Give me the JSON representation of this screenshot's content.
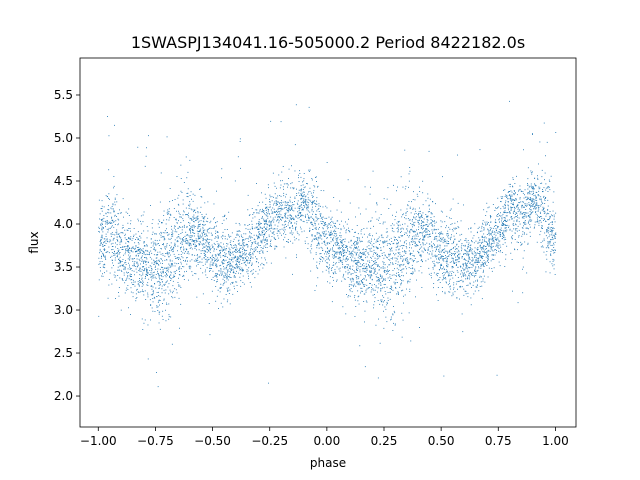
{
  "chart_data": {
    "type": "scatter",
    "title": "1SWASPJ134041.16-505000.2 Period 8422182.0s",
    "xlabel": "phase",
    "ylabel": "flux",
    "xlim": [
      -1.08,
      1.09
    ],
    "ylim": [
      1.64,
      5.93
    ],
    "x_ticks": [
      -1.0,
      -0.75,
      -0.5,
      -0.25,
      0.0,
      0.25,
      0.5,
      0.75,
      1.0
    ],
    "x_tick_labels": [
      "−1.00",
      "−0.75",
      "−0.50",
      "−0.25",
      "0.00",
      "0.25",
      "0.50",
      "0.75",
      "1.00"
    ],
    "y_ticks": [
      2.0,
      2.5,
      3.0,
      3.5,
      4.0,
      4.5,
      5.0,
      5.5
    ],
    "y_tick_labels": [
      "2.0",
      "2.5",
      "3.0",
      "3.5",
      "4.0",
      "4.5",
      "5.0",
      "5.5"
    ],
    "grid": false,
    "legend": "none",
    "marker_color": "#1f77b4",
    "series": [
      {
        "phase": [
          -1.0,
          -0.95,
          -0.9,
          -0.85,
          -0.8,
          -0.75,
          -0.7,
          -0.65,
          -0.6,
          -0.55,
          -0.5,
          -0.45,
          -0.4,
          -0.35,
          -0.3,
          -0.25,
          -0.2,
          -0.15,
          -0.1,
          -0.05,
          0.0,
          0.05,
          0.1,
          0.15,
          0.2,
          0.25,
          0.3,
          0.35,
          0.4,
          0.45,
          0.5,
          0.55,
          0.6,
          0.65,
          0.7,
          0.75,
          0.8,
          0.85,
          0.9,
          0.95,
          1.0
        ],
        "flux_mean": [
          3.75,
          3.95,
          3.7,
          3.6,
          3.55,
          3.45,
          3.6,
          3.75,
          3.95,
          3.85,
          3.65,
          3.55,
          3.6,
          3.7,
          3.85,
          4.05,
          4.15,
          4.1,
          4.3,
          4.0,
          3.75,
          3.75,
          3.6,
          3.55,
          3.55,
          3.45,
          3.55,
          3.75,
          3.9,
          3.9,
          3.65,
          3.6,
          3.55,
          3.6,
          3.75,
          3.95,
          4.15,
          4.1,
          4.3,
          4.15,
          3.8
        ],
        "flux_spread": [
          0.25,
          0.4,
          0.35,
          0.3,
          0.35,
          0.4,
          0.45,
          0.4,
          0.3,
          0.3,
          0.3,
          0.3,
          0.25,
          0.25,
          0.25,
          0.25,
          0.25,
          0.3,
          0.2,
          0.35,
          0.3,
          0.25,
          0.3,
          0.3,
          0.35,
          0.4,
          0.45,
          0.4,
          0.3,
          0.3,
          0.3,
          0.3,
          0.25,
          0.25,
          0.25,
          0.25,
          0.25,
          0.3,
          0.2,
          0.35,
          0.3
        ]
      }
    ]
  }
}
